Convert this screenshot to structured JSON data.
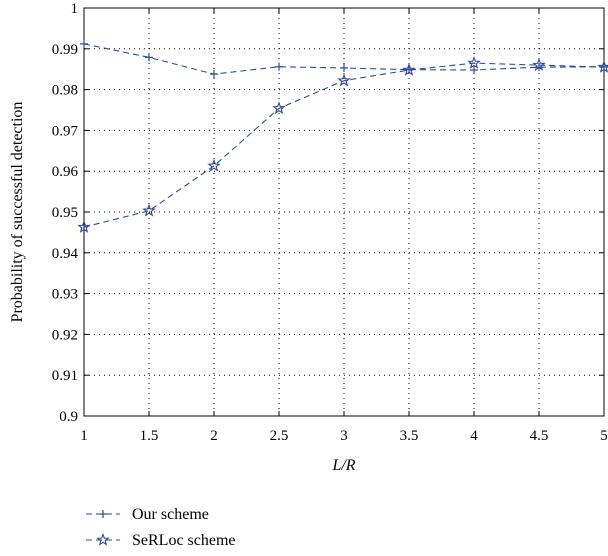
{
  "chart_data": {
    "type": "line",
    "title": "",
    "xlabel": "L/R",
    "ylabel": "Probability of successful detection",
    "xlim": [
      1,
      5
    ],
    "ylim": [
      0.9,
      1
    ],
    "x_ticks": [
      "1",
      "1.5",
      "2",
      "2.5",
      "3",
      "3.5",
      "4",
      "4.5",
      "5"
    ],
    "y_ticks": [
      "0.9",
      "0.91",
      "0.92",
      "0.93",
      "0.94",
      "0.95",
      "0.96",
      "0.97",
      "0.98",
      "0.99",
      "1"
    ],
    "grid": true,
    "legend_position": "below",
    "series": [
      {
        "name": "Our scheme",
        "marker": "plus",
        "color": "#2a4a9a",
        "x": [
          1,
          1.5,
          2,
          2.5,
          3,
          3.5,
          4,
          4.5,
          5
        ],
        "values": [
          0.9912,
          0.9879,
          0.9838,
          0.9856,
          0.9853,
          0.9849,
          0.9848,
          0.9855,
          0.9856
        ]
      },
      {
        "name": "SeRLoc scheme",
        "marker": "star",
        "color": "#2a4a9a",
        "x": [
          1,
          1.5,
          2,
          2.5,
          3,
          3.5,
          4,
          4.5,
          5
        ],
        "values": [
          0.9463,
          0.9503,
          0.9613,
          0.9754,
          0.9822,
          0.9848,
          0.9865,
          0.986,
          0.9855
        ]
      }
    ]
  }
}
